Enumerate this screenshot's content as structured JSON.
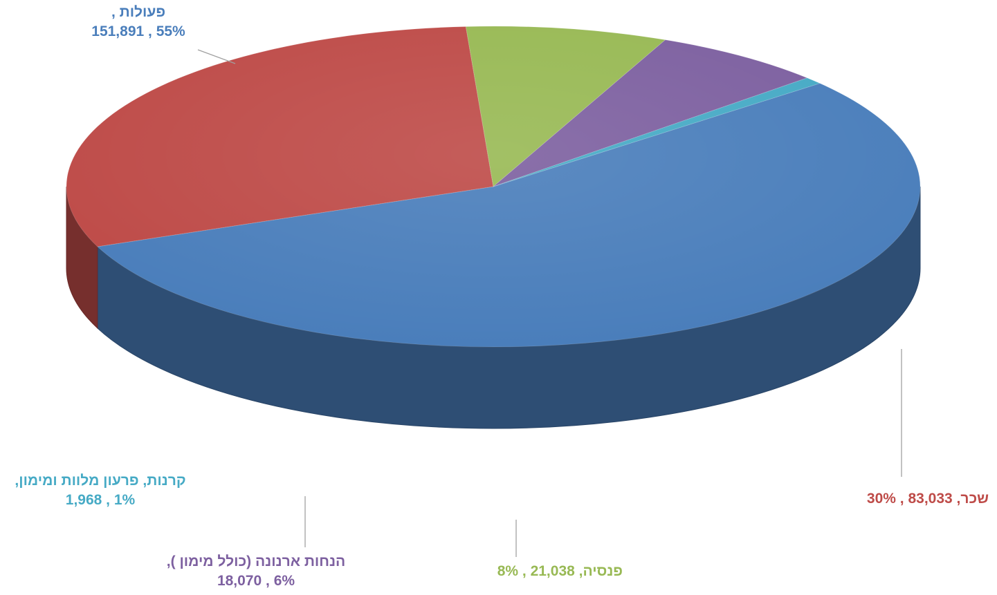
{
  "chart_data": {
    "type": "pie",
    "title": "",
    "slices": [
      {
        "name": "פעולות",
        "value": 151891,
        "percent": "55%",
        "color": "#4a7ebb"
      },
      {
        "name": "שכר",
        "value": 83033,
        "percent": "30%",
        "color": "#be4b48"
      },
      {
        "name": "פנסיה",
        "value": 21038,
        "percent": "8%",
        "color": "#98b954"
      },
      {
        "name": "הנחות ארנונה (כולל מימון )",
        "value": 18070,
        "percent": "6%",
        "color": "#7d60a0"
      },
      {
        "name": "קרנות, פרעון מלוות ומימון",
        "value": 1968,
        "percent": "1%",
        "color": "#46aac5"
      }
    ]
  },
  "labels": {
    "s0": {
      "line1": "פעולות ,",
      "line2": "55% , 151,891"
    },
    "s1": {
      "line1": "שכר,  83,033 , 30%"
    },
    "s2": {
      "line1": "פנסיה,  21,038 , 8%"
    },
    "s3": {
      "line1": "הנחות ארנונה (כולל מימון ),",
      "line2": "6% , 18,070"
    },
    "s4": {
      "line1": "קרנות, פרעון מלוות ומימון,",
      "line2": "1% , 1,968"
    }
  }
}
